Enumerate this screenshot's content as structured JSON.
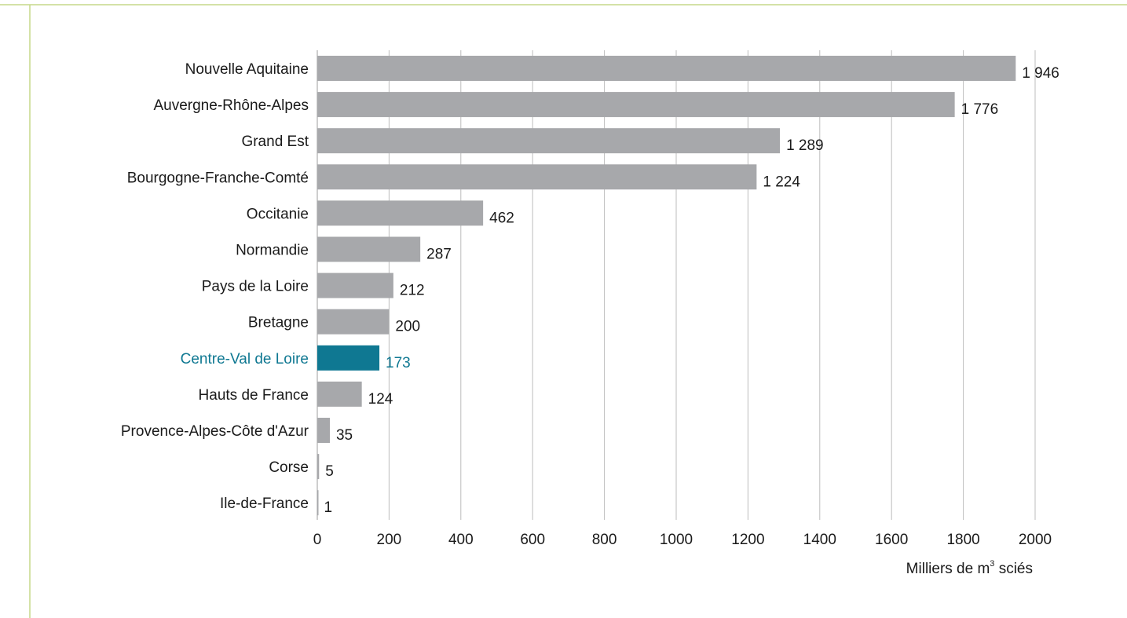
{
  "chart_data": {
    "type": "bar",
    "orientation": "horizontal",
    "categories": [
      "Nouvelle Aquitaine",
      "Auvergne-Rhône-Alpes",
      "Grand Est",
      "Bourgogne-Franche-Comté",
      "Occitanie",
      "Normandie",
      "Pays de la Loire",
      "Bretagne",
      "Centre-Val de Loire",
      "Hauts de France",
      "Provence-Alpes-Côte d'Azur",
      "Corse",
      "Ile-de-France"
    ],
    "values": [
      1946,
      1776,
      1289,
      1224,
      462,
      287,
      212,
      200,
      173,
      124,
      35,
      5,
      1
    ],
    "value_labels": [
      "1 946",
      "1 776",
      "1 289",
      "1 224",
      "462",
      "287",
      "212",
      "200",
      "173",
      "124",
      "35",
      "5",
      "1"
    ],
    "highlight_index": 8,
    "xlim": [
      0,
      2000
    ],
    "xticks": [
      0,
      200,
      400,
      600,
      800,
      1000,
      1200,
      1400,
      1600,
      1800,
      2000
    ],
    "xlabel_prefix": "Milliers de m",
    "xlabel_sup": "3",
    "xlabel_suffix": " sciés",
    "grid": true,
    "colors": {
      "bar": "#a7a8ab",
      "highlight": "#0f7892",
      "grid": "#bdbdbd",
      "frame": "#c5d98a",
      "text": "#1a1a1a"
    }
  }
}
